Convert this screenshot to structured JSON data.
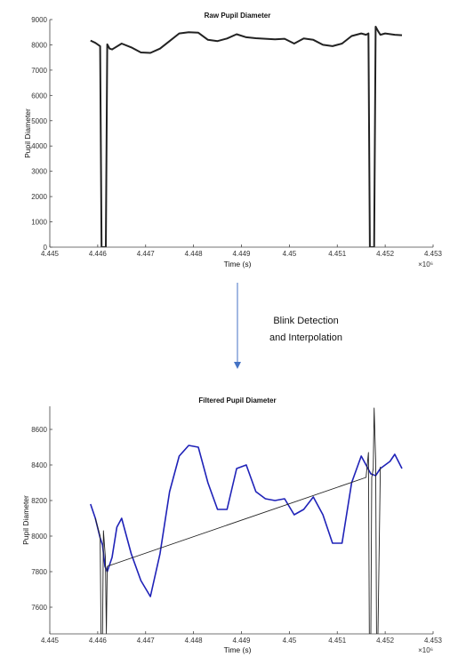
{
  "chart_data": [
    {
      "type": "line",
      "title": "Raw Pupil Diameter",
      "xlabel": "Time (s)",
      "ylabel": "Pupil Diameter",
      "x_multiplier_label": "×10⁶",
      "xlim": [
        4.445,
        4.453
      ],
      "ylim": [
        0,
        9000
      ],
      "xticks": [
        "4.445",
        "4.446",
        "4.447",
        "4.448",
        "4.449",
        "4.45",
        "4.451",
        "4.452",
        "4.453"
      ],
      "yticks": [
        "0",
        "1000",
        "2000",
        "3000",
        "4000",
        "5000",
        "6000",
        "7000",
        "8000",
        "9000"
      ],
      "grid": false,
      "series": [
        {
          "color": "#222222",
          "x": [
            4.44585,
            4.44595,
            4.44605,
            4.44608,
            4.44611,
            4.44614,
            4.44617,
            4.4462,
            4.44625,
            4.4463,
            4.4465,
            4.4467,
            4.4469,
            4.4471,
            4.4473,
            4.4475,
            4.4477,
            4.4479,
            4.4481,
            4.4483,
            4.4485,
            4.4487,
            4.4489,
            4.4491,
            4.4493,
            4.4495,
            4.4497,
            4.4499,
            4.4501,
            4.4503,
            4.4505,
            4.4507,
            4.4509,
            4.4511,
            4.4513,
            4.4515,
            4.4516,
            4.45165,
            4.45168,
            4.45171,
            4.45174,
            4.45177,
            4.4518,
            4.45185,
            4.4519,
            4.452,
            4.4522,
            4.45235
          ],
          "y": [
            8170,
            8080,
            7950,
            0,
            0,
            0,
            0,
            8020,
            7850,
            7820,
            8050,
            7900,
            7700,
            7680,
            7850,
            8150,
            8450,
            8500,
            8480,
            8200,
            8150,
            8250,
            8420,
            8300,
            8260,
            8240,
            8220,
            8240,
            8050,
            8250,
            8200,
            8000,
            7950,
            8050,
            8350,
            8450,
            8400,
            8450,
            0,
            0,
            0,
            0,
            8720,
            8550,
            8400,
            8450,
            8400,
            8380
          ]
        }
      ]
    },
    {
      "type": "line",
      "title": "Filtered Pupil Diameter",
      "xlabel": "Time (s)",
      "ylabel": "Pupil Diameter",
      "x_multiplier_label": "×10⁶",
      "xlim": [
        4.445,
        4.453
      ],
      "ylim": [
        7450,
        8730
      ],
      "xticks": [
        "4.445",
        "4.446",
        "4.447",
        "4.448",
        "4.449",
        "4.45",
        "4.451",
        "4.452",
        "4.453"
      ],
      "yticks": [
        "7600",
        "7800",
        "8000",
        "8200",
        "8400",
        "8600"
      ],
      "grid": false,
      "series": [
        {
          "color": "#1f22b8",
          "x": [
            4.44585,
            4.44595,
            4.44605,
            4.4461,
            4.44615,
            4.4462,
            4.4463,
            4.4464,
            4.4465,
            4.4467,
            4.4469,
            4.4471,
            4.4473,
            4.4475,
            4.4477,
            4.4479,
            4.4481,
            4.4483,
            4.4485,
            4.4487,
            4.4489,
            4.4491,
            4.4493,
            4.4495,
            4.4497,
            4.4499,
            4.4501,
            4.4503,
            4.4505,
            4.4507,
            4.4509,
            4.4511,
            4.4513,
            4.4515,
            4.4516,
            4.4517,
            4.4518,
            4.4519,
            4.452,
            4.4521,
            4.4522,
            4.45235
          ],
          "y": [
            8180,
            8100,
            7990,
            7950,
            7830,
            7800,
            7880,
            8050,
            8100,
            7900,
            7750,
            7660,
            7900,
            8250,
            8450,
            8510,
            8500,
            8300,
            8150,
            8150,
            8380,
            8400,
            8250,
            8210,
            8200,
            8210,
            8120,
            8150,
            8220,
            8120,
            7960,
            7960,
            8300,
            8450,
            8400,
            8350,
            8340,
            8380,
            8400,
            8420,
            8460,
            8380
          ]
        },
        {
          "color": "#222222",
          "x": [
            4.44595,
            4.44605,
            4.44607,
            4.4461,
            4.44612,
            4.44616,
            4.44618,
            4.4462,
            4.4516,
            4.45165,
            4.45167,
            4.4517,
            4.45172,
            4.45175,
            4.45177,
            4.4518,
            4.45182,
            4.45185,
            4.4519
          ],
          "y": [
            8100,
            8000,
            7450,
            7450,
            8030,
            7880,
            7450,
            7830,
            8330,
            8470,
            7450,
            7450,
            8330,
            8380,
            8720,
            8430,
            7450,
            7450,
            8390
          ]
        }
      ]
    }
  ],
  "annotation": {
    "text_line1": "Blink Detection",
    "text_line2": "and Interpolation"
  }
}
